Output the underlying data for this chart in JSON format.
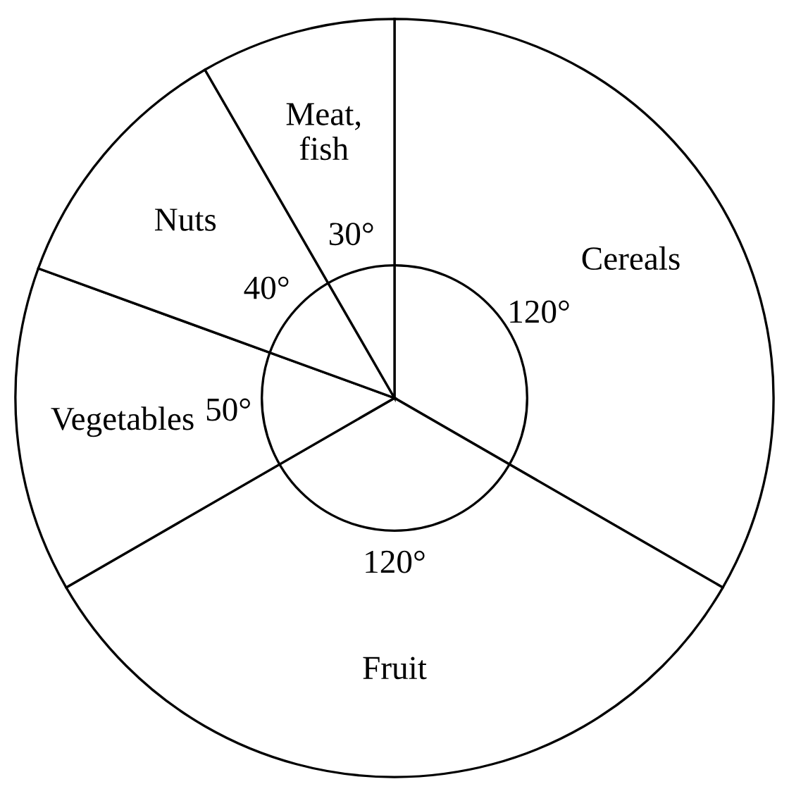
{
  "chart_data": {
    "type": "pie",
    "categories": [
      "Cereals",
      "Fruit",
      "Vegetables",
      "Nuts",
      "Meat,\nfish"
    ],
    "values": [
      120,
      120,
      50,
      40,
      30
    ],
    "value_labels": [
      "120°",
      "120°",
      "50°",
      "40°",
      "30°"
    ],
    "colors": [
      "#ffffff",
      "#ffffff",
      "#ffffff",
      "#ffffff",
      "#ffffff"
    ]
  }
}
